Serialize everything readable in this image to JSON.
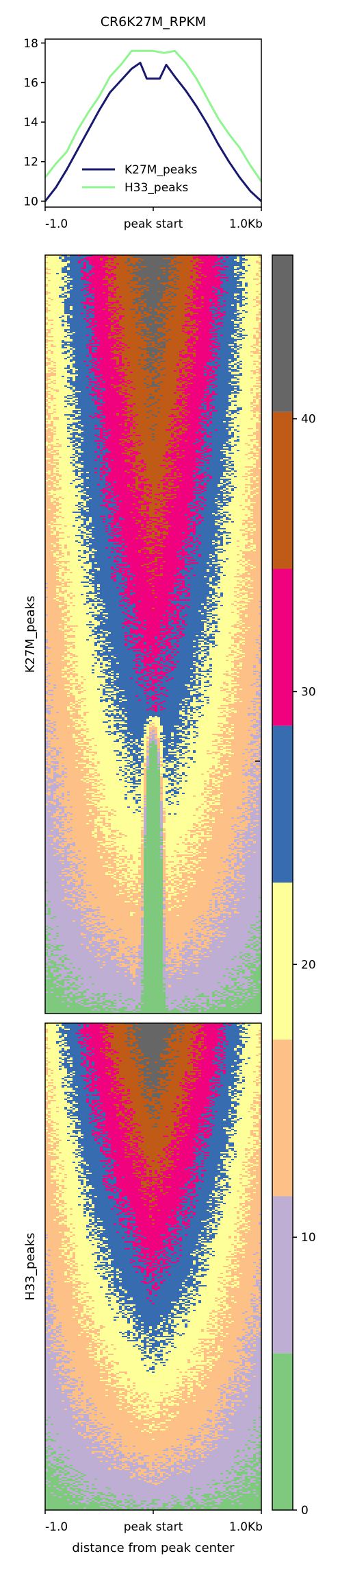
{
  "chart_data": [
    {
      "type": "line",
      "title": "CR6K27M_RPKM",
      "x_tick_labels": [
        "-1.0",
        "peak start",
        "1.0Kb"
      ],
      "y_ticks": [
        10,
        12,
        14,
        16,
        18
      ],
      "ylim": [
        9.7,
        18.2
      ],
      "xlim": [
        -1.0,
        1.0
      ],
      "legend_position": "lower-center",
      "series": [
        {
          "name": "K27M_peaks",
          "color": "#191970",
          "x": [
            -1.0,
            -0.9,
            -0.8,
            -0.7,
            -0.6,
            -0.5,
            -0.4,
            -0.3,
            -0.2,
            -0.12,
            -0.06,
            0.0,
            0.06,
            0.12,
            0.2,
            0.3,
            0.4,
            0.5,
            0.6,
            0.7,
            0.8,
            0.9,
            1.0
          ],
          "values": [
            10.0,
            10.7,
            11.6,
            12.6,
            13.6,
            14.6,
            15.5,
            16.1,
            16.7,
            17.0,
            16.2,
            16.2,
            16.2,
            16.9,
            16.3,
            15.6,
            14.8,
            13.9,
            12.9,
            12.0,
            11.2,
            10.5,
            10.0
          ]
        },
        {
          "name": "H33_peaks",
          "color": "#8ff58f",
          "x": [
            -1.0,
            -0.9,
            -0.8,
            -0.7,
            -0.6,
            -0.5,
            -0.4,
            -0.3,
            -0.2,
            -0.1,
            0.0,
            0.1,
            0.2,
            0.3,
            0.4,
            0.5,
            0.6,
            0.7,
            0.8,
            0.9,
            1.0
          ],
          "values": [
            11.2,
            11.9,
            12.5,
            13.6,
            14.5,
            15.3,
            16.3,
            16.9,
            17.6,
            17.6,
            17.6,
            17.5,
            17.6,
            17.0,
            16.2,
            15.2,
            14.2,
            13.4,
            12.7,
            11.8,
            11.0
          ]
        }
      ]
    },
    {
      "type": "heatmap",
      "panels": [
        {
          "ylabel": "K27M_peaks"
        },
        {
          "ylabel": "H33_peaks"
        }
      ],
      "x_tick_labels": [
        "-1.0",
        "peak start",
        "1.0Kb"
      ],
      "xlabel": "distance from peak center",
      "colorbar": {
        "ticks": [
          0,
          10,
          20,
          30,
          40
        ],
        "range": [
          0,
          46
        ],
        "bins": [
          {
            "from": 0.0,
            "to": 5.75,
            "color": "#7fc97f"
          },
          {
            "from": 5.75,
            "to": 11.5,
            "color": "#beaed4"
          },
          {
            "from": 11.5,
            "to": 17.25,
            "color": "#fdc086"
          },
          {
            "from": 17.25,
            "to": 23.0,
            "color": "#ffff99"
          },
          {
            "from": 23.0,
            "to": 28.75,
            "color": "#386cb0"
          },
          {
            "from": 28.75,
            "to": 34.5,
            "color": "#f0027f"
          },
          {
            "from": 34.5,
            "to": 40.25,
            "color": "#bf5b17"
          },
          {
            "from": 40.25,
            "to": 46.0,
            "color": "#666666"
          }
        ]
      }
    }
  ]
}
